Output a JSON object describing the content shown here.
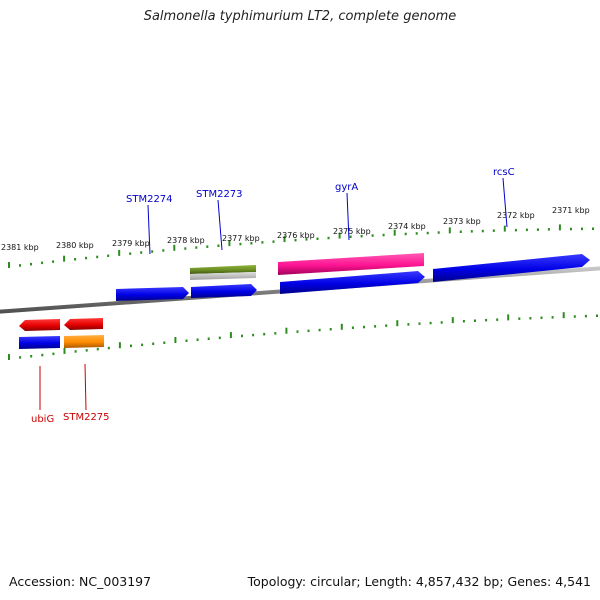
{
  "title": "Salmonella typhimurium LT2, complete genome",
  "footer": {
    "accession_label": "Accession:",
    "accession": "NC_003197",
    "topology_text": "Topology: circular; Length: 4,857,432 bp; Genes: 4,541"
  },
  "colors": {
    "backbone": "#808080",
    "tick": "#2e8b20",
    "label_forward": "#0000cc",
    "label_reverse": "#cc0000",
    "blue_gene": "#0000ee",
    "red_gene": "#ee0000",
    "pink_gene": "#ff1493",
    "olive_gene": "#6b8e23",
    "orange_gene": "#ff8c00"
  },
  "scale": {
    "unit": "kbp",
    "tick_labels": [
      "2381 kbp",
      "2380 kbp",
      "2379 kbp",
      "2378 kbp",
      "2377 kbp",
      "2376 kbp",
      "2375 kbp",
      "2374 kbp",
      "2373 kbp",
      "2372 kbp",
      "2371 kbp"
    ]
  },
  "genes": {
    "forward": [
      {
        "name": "STM2274",
        "color": "blue"
      },
      {
        "name": "STM2273",
        "color": "blue"
      },
      {
        "name": "gyrA",
        "color": "blue"
      },
      {
        "name": "rcsC",
        "color": "blue"
      }
    ],
    "reverse": [
      {
        "name": "ubiG",
        "color": "blue"
      },
      {
        "name": "STM2275",
        "color": "orange"
      }
    ]
  }
}
